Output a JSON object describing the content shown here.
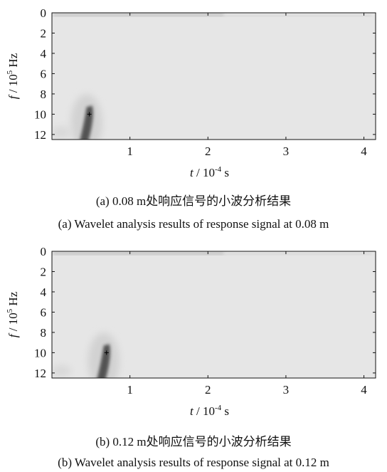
{
  "figure": {
    "panel_a": {
      "caption_cn": "(a)  0.08 m处响应信号的小波分析结果",
      "caption_en": "(a)  Wavelet analysis results of response signal at 0.08 m"
    },
    "panel_b": {
      "caption_cn": "(b)  0.12 m处响应信号的小波分析结果",
      "caption_en": "(b)  Wavelet analysis results of response signal at 0.12 m"
    }
  },
  "chart_data": [
    {
      "type": "heatmap",
      "title": "",
      "ylabel_prefix": "f",
      "ylabel_unit": " / 10",
      "ylabel_exp": "5",
      "ylabel_suffix": " Hz",
      "xlabel_prefix": "t",
      "xlabel_unit": " / 10",
      "xlabel_exp": "-4",
      "xlabel_suffix": " s",
      "x_ticks": [
        1,
        2,
        3,
        4
      ],
      "y_ticks": [
        0,
        2,
        4,
        6,
        8,
        10,
        12
      ],
      "xlim": [
        0,
        4.15
      ],
      "ylim": [
        0,
        12.5
      ],
      "y_inverted": true,
      "grid": false,
      "colors": {
        "background": "#e6e6e6",
        "ridge": "#3c3c3c"
      },
      "peak": {
        "t": 0.48,
        "f": 10
      }
    },
    {
      "type": "heatmap",
      "title": "",
      "ylabel_prefix": "f",
      "ylabel_unit": " / 10",
      "ylabel_exp": "5",
      "ylabel_suffix": " Hz",
      "xlabel_prefix": "t",
      "xlabel_unit": " / 10",
      "xlabel_exp": "-4",
      "xlabel_suffix": " s",
      "x_ticks": [
        1,
        2,
        3,
        4
      ],
      "y_ticks": [
        0,
        2,
        4,
        6,
        8,
        10,
        12
      ],
      "xlim": [
        0,
        4.15
      ],
      "ylim": [
        0,
        12.5
      ],
      "y_inverted": true,
      "grid": false,
      "colors": {
        "background": "#e6e6e6",
        "ridge": "#3c3c3c"
      },
      "peak": {
        "t": 0.7,
        "f": 10
      }
    }
  ]
}
